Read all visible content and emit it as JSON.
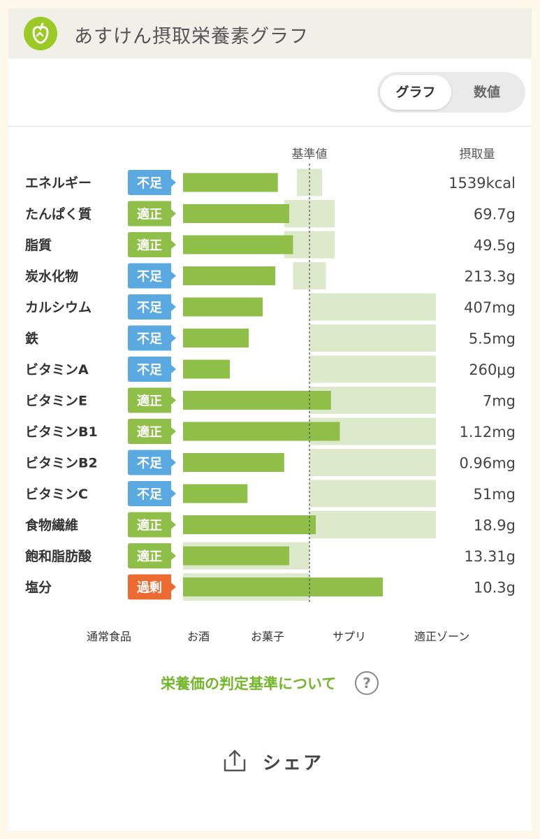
{
  "header": {
    "title": "あすけん摂取栄養素グラフ"
  },
  "toggle": {
    "graph": "グラフ",
    "numeric": "数値"
  },
  "colors": {
    "normal_food": "#8fbe49",
    "alcohol": "#5aa9e0",
    "snack": "#ee6a33",
    "supplement": "#f6b92c",
    "optimal_zone": "#dde9cb",
    "badge_deficient": "#5aa9e0",
    "badge_optimal": "#8fbe49",
    "badge_excess": "#ee6a33"
  },
  "chart_data": {
    "type": "bar",
    "orientation": "horizontal",
    "reference_label": "基準値",
    "value_header": "摂取量",
    "rows": [
      {
        "name": "エネルギー",
        "status": "不足",
        "status_type": "deficient",
        "value_text": "1539kcal",
        "ratio": 0.75,
        "zone": [
          0.9,
          1.1
        ]
      },
      {
        "name": "たんぱく質",
        "status": "適正",
        "status_type": "optimal",
        "value_text": "69.7g",
        "ratio": 0.84,
        "zone": [
          0.8,
          1.2
        ]
      },
      {
        "name": "脂質",
        "status": "適正",
        "status_type": "optimal",
        "value_text": "49.5g",
        "ratio": 0.87,
        "zone": [
          0.8,
          1.2
        ]
      },
      {
        "name": "炭水化物",
        "status": "不足",
        "status_type": "deficient",
        "value_text": "213.3g",
        "ratio": 0.73,
        "zone": [
          0.87,
          1.13
        ]
      },
      {
        "name": "カルシウム",
        "status": "不足",
        "status_type": "deficient",
        "value_text": "407mg",
        "ratio": 0.63,
        "zone": [
          1.0,
          2.0
        ]
      },
      {
        "name": "鉄",
        "status": "不足",
        "status_type": "deficient",
        "value_text": "5.5mg",
        "ratio": 0.52,
        "zone": [
          1.0,
          2.0
        ]
      },
      {
        "name": "ビタミンA",
        "status": "不足",
        "status_type": "deficient",
        "value_text": "260μg",
        "ratio": 0.37,
        "zone": [
          1.0,
          2.0
        ]
      },
      {
        "name": "ビタミンE",
        "status": "適正",
        "status_type": "optimal",
        "value_text": "7mg",
        "ratio": 1.17,
        "zone": [
          1.0,
          2.0
        ]
      },
      {
        "name": "ビタミンB1",
        "status": "適正",
        "status_type": "optimal",
        "value_text": "1.12mg",
        "ratio": 1.24,
        "zone": [
          1.0,
          2.0
        ]
      },
      {
        "name": "ビタミンB2",
        "status": "不足",
        "status_type": "deficient",
        "value_text": "0.96mg",
        "ratio": 0.8,
        "zone": [
          1.0,
          2.0
        ]
      },
      {
        "name": "ビタミンC",
        "status": "不足",
        "status_type": "deficient",
        "value_text": "51mg",
        "ratio": 0.51,
        "zone": [
          1.0,
          2.0
        ]
      },
      {
        "name": "食物繊維",
        "status": "適正",
        "status_type": "optimal",
        "value_text": "18.9g",
        "ratio": 1.05,
        "zone": [
          1.0,
          2.0
        ]
      },
      {
        "name": "飽和脂肪酸",
        "status": "適正",
        "status_type": "optimal",
        "value_text": "13.31g",
        "ratio": 0.84,
        "zone": [
          0.0,
          1.0
        ]
      },
      {
        "name": "塩分",
        "status": "過剰",
        "status_type": "excess",
        "value_text": "10.3g",
        "ratio": 1.58,
        "zone": [
          0.0,
          1.0
        ]
      }
    ],
    "legend": [
      {
        "label": "通常食品",
        "color": "#8fbe49"
      },
      {
        "label": "お酒",
        "color": "#5aa9e0"
      },
      {
        "label": "お菓子",
        "color": "#ee6a33"
      },
      {
        "label": "サプリ",
        "color": "#f6b92c"
      },
      {
        "label": "適正ゾーン",
        "color": "#dde9cb"
      }
    ]
  },
  "criteria_link": "栄養価の判定基準について",
  "help_icon": "question-icon",
  "share": {
    "label": "シェア",
    "icon": "share-icon"
  }
}
